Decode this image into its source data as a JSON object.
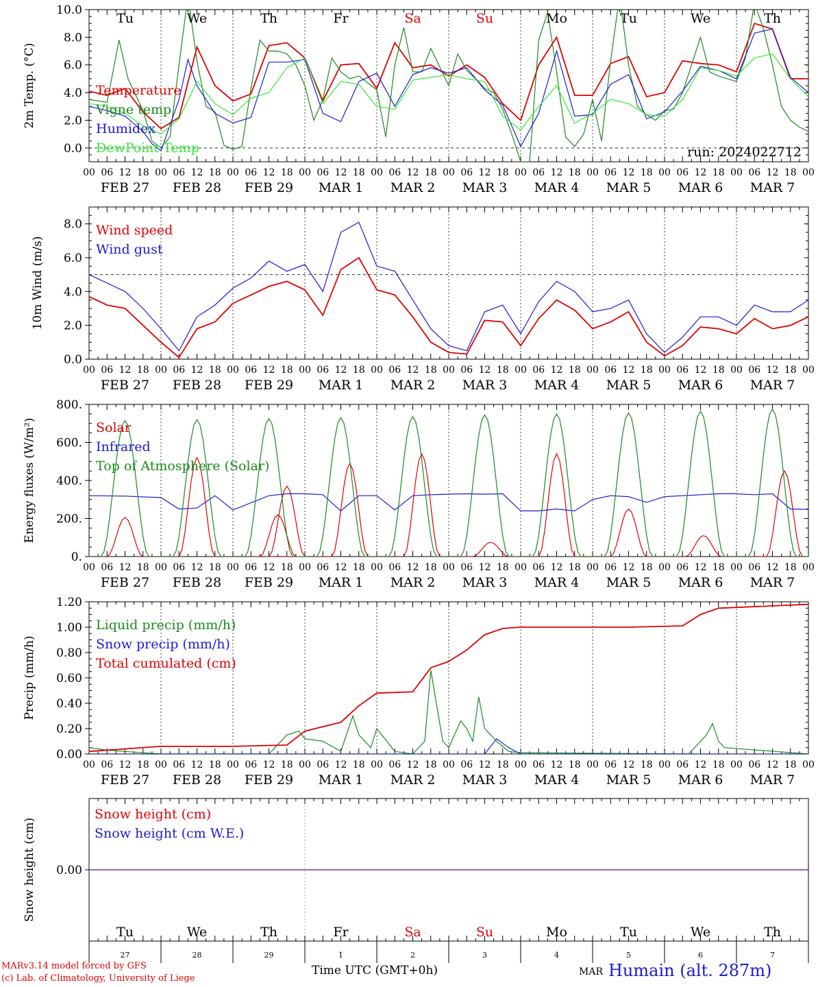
{
  "days": [
    "Tu",
    "We",
    "Th",
    "Fr",
    "Sa",
    "Su",
    "Mo",
    "Tu",
    "We",
    "Th"
  ],
  "weekend_days": [
    "Sa",
    "Su"
  ],
  "dates": [
    "FEB 27",
    "FEB 28",
    "FEB 29",
    "MAR  1",
    "MAR  2",
    "MAR  3",
    "MAR  4",
    "MAR  5",
    "MAR  6",
    "MAR  7"
  ],
  "day_numbers": [
    "27",
    "28",
    "29",
    "1",
    "2",
    "3",
    "4",
    "5",
    "6",
    "7"
  ],
  "hour_ticks": [
    "00",
    "06",
    "12",
    "18"
  ],
  "final_tick": "00",
  "run_label": "run: 2024022712",
  "footer": {
    "model": "MARv3.14 model forced by GFS",
    "credit": "(c) Lab. of Climatology, University of Liege",
    "xlabel": "Time UTC (GMT+0h)",
    "mar_tag": "MAR",
    "station": "Humain (alt. 287m)"
  },
  "colors": {
    "red": "#e00000",
    "green": "#1a8a1a",
    "blue": "#1a1ad8",
    "lightgreen": "#33e833",
    "darkblue": "#0000c0",
    "purple": "#7a2a9a"
  },
  "chart_data": [
    {
      "type": "line",
      "ylabel": "2m Temp. (°C)",
      "ylim": [
        -1.0,
        10.0
      ],
      "yticks": [
        "0.0",
        "2.0",
        "4.0",
        "6.0",
        "8.0",
        "10.0"
      ],
      "yticks_values": [
        0,
        2,
        4,
        6,
        8,
        10
      ],
      "dashed_ref": 0.0,
      "x_unit": "hours from FEB 27 00 UTC",
      "series": [
        {
          "name": "Temperature",
          "color": "#e00000",
          "x": [
            0,
            6,
            12,
            18,
            24,
            30,
            36,
            42,
            48,
            54,
            60,
            66,
            72,
            78,
            84,
            90,
            96,
            102,
            108,
            114,
            120,
            126,
            132,
            138,
            144,
            150,
            156,
            162,
            168,
            174,
            180,
            186,
            192,
            198,
            204,
            210,
            216,
            222,
            228,
            234,
            240
          ],
          "y": [
            4.1,
            3.8,
            4.3,
            2.6,
            1.4,
            2.2,
            7.3,
            4.5,
            3.4,
            3.9,
            7.4,
            7.6,
            6.5,
            3.4,
            6.0,
            6.1,
            4.3,
            7.6,
            5.8,
            6.0,
            5.2,
            6.0,
            5.1,
            3.2,
            2.0,
            6.0,
            8.0,
            3.8,
            3.8,
            6.1,
            6.6,
            3.7,
            4.0,
            6.3,
            6.1,
            6.0,
            5.5,
            9.0,
            8.6,
            5.0,
            5.0
          ]
        },
        {
          "name": "Vigne temp",
          "color": "#1a8a1a",
          "x": [
            0,
            6,
            10,
            13,
            18,
            21,
            24,
            27,
            30,
            33,
            36,
            39,
            42,
            45,
            48,
            51,
            54,
            57,
            60,
            63,
            66,
            69,
            72,
            75,
            78,
            81,
            84,
            87,
            90,
            96,
            99,
            102,
            105,
            108,
            111,
            114,
            120,
            123,
            126,
            129,
            132,
            135,
            138,
            141,
            144,
            147,
            150,
            153,
            156,
            159,
            162,
            165,
            168,
            171,
            174,
            177,
            180,
            183,
            186,
            189,
            192,
            195,
            198,
            201,
            204,
            207,
            210,
            213,
            216,
            219,
            222,
            225,
            228,
            231,
            234,
            237,
            240
          ],
          "y": [
            3.5,
            3.3,
            7.8,
            5.0,
            2.7,
            0.5,
            0.0,
            0.8,
            6.0,
            11.0,
            6.3,
            3.0,
            2.6,
            0.2,
            -0.1,
            0.1,
            4.3,
            7.8,
            7.0,
            7.0,
            6.8,
            6.0,
            4.5,
            2.0,
            3.5,
            6.5,
            5.5,
            5.0,
            5.2,
            4.2,
            0.8,
            6.0,
            8.7,
            5.5,
            5.5,
            7.2,
            4.5,
            6.8,
            5.6,
            5.0,
            4.3,
            4.0,
            2.8,
            1.0,
            -1.8,
            -2.5,
            7.8,
            9.8,
            5.5,
            0.8,
            0.1,
            1.0,
            3.5,
            0.5,
            6.3,
            11.0,
            6.0,
            3.0,
            2.4,
            2.0,
            2.7,
            2.8,
            4.0,
            6.0,
            8.0,
            5.5,
            5.2,
            5.0,
            4.8,
            6.5,
            10.5,
            8.6,
            6.0,
            3.0,
            2.0,
            1.5,
            1.2
          ]
        },
        {
          "name": "Humidex",
          "color": "#1a1ad8",
          "x": [
            0,
            6,
            12,
            18,
            21,
            24,
            30,
            33,
            36,
            42,
            48,
            54,
            60,
            66,
            72,
            78,
            84,
            90,
            96,
            102,
            108,
            114,
            120,
            126,
            132,
            138,
            144,
            150,
            156,
            162,
            168,
            174,
            180,
            186,
            192,
            198,
            204,
            210,
            216,
            222,
            228,
            234,
            240
          ],
          "y": [
            3.0,
            2.7,
            2.3,
            1.2,
            0.3,
            -0.2,
            3.5,
            6.4,
            4.5,
            2.5,
            1.8,
            2.2,
            6.2,
            6.2,
            6.4,
            2.5,
            1.9,
            4.8,
            5.4,
            3.0,
            5.3,
            5.8,
            5.4,
            5.8,
            4.2,
            3.1,
            0.1,
            2.5,
            7.0,
            2.3,
            2.4,
            4.6,
            5.3,
            2.1,
            2.6,
            4.1,
            5.9,
            5.6,
            5.0,
            8.3,
            8.6,
            5.1,
            4.0
          ]
        },
        {
          "name": "DewPoint Temp",
          "color": "#33e833",
          "x": [
            0,
            6,
            12,
            18,
            24,
            30,
            36,
            42,
            48,
            54,
            60,
            66,
            72,
            78,
            84,
            90,
            96,
            102,
            108,
            114,
            120,
            126,
            132,
            138,
            144,
            150,
            156,
            162,
            168,
            174,
            180,
            186,
            192,
            198,
            204,
            210,
            216,
            222,
            228,
            234,
            240
          ],
          "y": [
            3.2,
            3.0,
            2.5,
            1.6,
            1.0,
            2.1,
            4.8,
            3.2,
            2.4,
            3.6,
            4.0,
            5.8,
            6.5,
            3.2,
            4.8,
            4.6,
            3.0,
            2.8,
            4.9,
            5.1,
            5.3,
            5.0,
            4.8,
            2.3,
            1.3,
            3.0,
            4.5,
            1.8,
            2.5,
            3.5,
            3.2,
            2.4,
            2.3,
            3.5,
            5.8,
            5.6,
            5.2,
            6.5,
            6.8,
            5.0,
            3.7
          ]
        }
      ],
      "legend": [
        "Temperature",
        "Vigne temp",
        "Humidex",
        "DewPoint Temp"
      ]
    },
    {
      "type": "line",
      "ylabel": "10m Wind (m/s)",
      "ylim": [
        0.0,
        9.0
      ],
      "yticks": [
        "0.0",
        "2.0",
        "4.0",
        "6.0",
        "8.0"
      ],
      "yticks_values": [
        0,
        2,
        4,
        6,
        8
      ],
      "dashed_ref": 5.0,
      "x_unit": "hours from FEB 27 00 UTC",
      "series": [
        {
          "name": "Wind speed",
          "color": "#e00000",
          "x": [
            0,
            6,
            12,
            18,
            24,
            30,
            36,
            42,
            48,
            54,
            60,
            66,
            72,
            78,
            84,
            90,
            96,
            102,
            108,
            114,
            120,
            126,
            132,
            138,
            144,
            150,
            156,
            162,
            168,
            174,
            180,
            186,
            192,
            198,
            204,
            210,
            216,
            222,
            228,
            234,
            240
          ],
          "y": [
            3.7,
            3.2,
            3.0,
            2.0,
            1.0,
            0.1,
            1.8,
            2.2,
            3.3,
            3.8,
            4.3,
            4.6,
            4.1,
            2.6,
            5.3,
            6.0,
            4.1,
            3.8,
            2.5,
            1.0,
            0.4,
            0.3,
            2.3,
            2.2,
            0.8,
            2.4,
            3.5,
            2.9,
            1.8,
            2.2,
            2.8,
            1.0,
            0.2,
            0.8,
            1.9,
            1.8,
            1.5,
            2.4,
            1.8,
            2.0,
            2.5
          ]
        },
        {
          "name": "Wind gust",
          "color": "#1a1ad8",
          "x": [
            0,
            6,
            12,
            18,
            24,
            30,
            36,
            42,
            48,
            54,
            60,
            66,
            72,
            78,
            84,
            90,
            96,
            102,
            108,
            114,
            120,
            126,
            132,
            138,
            144,
            150,
            156,
            162,
            168,
            174,
            180,
            186,
            192,
            198,
            204,
            210,
            216,
            222,
            228,
            234,
            240
          ],
          "y": [
            5.0,
            4.5,
            4.0,
            3.0,
            1.8,
            0.5,
            2.5,
            3.2,
            4.2,
            4.8,
            5.8,
            5.2,
            5.6,
            4.0,
            7.5,
            8.1,
            5.5,
            5.2,
            3.5,
            1.8,
            0.8,
            0.5,
            2.8,
            3.2,
            1.5,
            3.4,
            4.6,
            4.0,
            2.8,
            3.0,
            3.5,
            1.5,
            0.4,
            1.3,
            2.5,
            2.5,
            2.0,
            3.2,
            2.8,
            2.8,
            3.5
          ]
        }
      ],
      "legend": [
        "Wind speed",
        "Wind gust"
      ]
    },
    {
      "type": "line",
      "ylabel": "Energy fluxes (W/m²)",
      "ylim": [
        0,
        800
      ],
      "yticks": [
        "0.",
        "200.",
        "400.",
        "600.",
        "800."
      ],
      "yticks_values": [
        0,
        200,
        400,
        600,
        800
      ],
      "x_unit": "hours from FEB 27 00 UTC",
      "series": [
        {
          "name": "Solar",
          "color": "#e00000",
          "peaks_x": [
            12,
            36,
            63,
            66,
            87,
            111,
            134,
            156,
            180,
            205,
            232
          ],
          "peaks_y": [
            205,
            520,
            220,
            370,
            490,
            540,
            75,
            540,
            250,
            110,
            450
          ]
        },
        {
          "name": "Infrared",
          "color": "#1a1ad8",
          "x": [
            0,
            12,
            24,
            30,
            36,
            42,
            48,
            60,
            66,
            72,
            78,
            84,
            90,
            96,
            102,
            108,
            114,
            120,
            126,
            132,
            138,
            144,
            150,
            156,
            162,
            168,
            174,
            180,
            186,
            192,
            198,
            204,
            210,
            216,
            222,
            228,
            234,
            240
          ],
          "y": [
            320,
            318,
            310,
            250,
            255,
            320,
            245,
            320,
            330,
            330,
            325,
            240,
            320,
            320,
            245,
            320,
            325,
            328,
            330,
            328,
            330,
            240,
            240,
            250,
            240,
            300,
            320,
            315,
            285,
            315,
            320,
            325,
            330,
            330,
            325,
            330,
            250,
            248
          ]
        },
        {
          "name": "Top of Atmosphere (Solar)",
          "color": "#1a8a1a",
          "peaks_x": [
            12,
            36,
            60,
            84,
            108,
            132,
            156,
            180,
            204,
            228
          ],
          "peaks_y": [
            715,
            720,
            725,
            730,
            735,
            745,
            750,
            755,
            765,
            775
          ]
        }
      ],
      "legend": [
        "Solar",
        "Infrared",
        "Top of Atmosphere (Solar)"
      ]
    },
    {
      "type": "line",
      "ylabel": "Precip (mm/h)",
      "ylim": [
        0.0,
        1.2
      ],
      "yticks": [
        "0.00",
        "0.20",
        "0.40",
        "0.60",
        "0.80",
        "1.00",
        "1.20"
      ],
      "yticks_values": [
        0,
        0.2,
        0.4,
        0.6,
        0.8,
        1.0,
        1.2
      ],
      "x_unit": "hours from FEB 27 00 UTC",
      "series": [
        {
          "name": "Liquid precip (mm/h)",
          "color": "#1a8a1a",
          "x": [
            0,
            6,
            12,
            18,
            24,
            60,
            66,
            70,
            72,
            78,
            84,
            88,
            90,
            94,
            96,
            102,
            108,
            112,
            114,
            118,
            120,
            124,
            126,
            128,
            130,
            132,
            136,
            140,
            144,
            200,
            204,
            206,
            208,
            210,
            212,
            240
          ],
          "y": [
            0.05,
            0.03,
            0.02,
            0.01,
            0,
            0,
            0.15,
            0.18,
            0.12,
            0.1,
            0.02,
            0.3,
            0.15,
            0.05,
            0.2,
            0.02,
            0.0,
            0.1,
            0.66,
            0.1,
            0.05,
            0.26,
            0.2,
            0.1,
            0.45,
            0.2,
            0.1,
            0.02,
            0.01,
            0.0,
            0.1,
            0.15,
            0.24,
            0.1,
            0.05,
            0.0
          ]
        },
        {
          "name": "Snow precip (mm/h)",
          "color": "#1a1ad8",
          "x": [
            0,
            132,
            136,
            140,
            144,
            240
          ],
          "y": [
            0,
            0,
            0.12,
            0.05,
            0,
            0
          ]
        },
        {
          "name": "Total cumulated (cm)",
          "color": "#e00000",
          "x": [
            0,
            12,
            24,
            48,
            66,
            72,
            84,
            90,
            96,
            108,
            114,
            120,
            126,
            132,
            138,
            144,
            180,
            198,
            204,
            210,
            240
          ],
          "y": [
            0.02,
            0.04,
            0.06,
            0.06,
            0.07,
            0.18,
            0.25,
            0.38,
            0.48,
            0.49,
            0.68,
            0.73,
            0.82,
            0.94,
            0.99,
            1.0,
            1.0,
            1.01,
            1.1,
            1.15,
            1.18
          ]
        }
      ],
      "legend": [
        "Liquid precip (mm/h)",
        "Snow precip (mm/h)",
        "Total cumulated (cm)"
      ]
    },
    {
      "type": "line",
      "ylabel": "Snow height (cm)",
      "ylim": [
        -1.0,
        1.0
      ],
      "yticks": [
        "0.00"
      ],
      "yticks_values": [
        0
      ],
      "x_unit": "hours from FEB 27 00 UTC",
      "series": [
        {
          "name": "Snow height (cm)",
          "color": "#e00000",
          "x": [
            0,
            240
          ],
          "y": [
            0,
            0
          ]
        },
        {
          "name": "Snow height (cm W.E.)",
          "color": "#1a1ad8",
          "x": [
            0,
            240
          ],
          "y": [
            0,
            0
          ]
        }
      ],
      "legend": [
        "Snow height (cm)",
        "Snow height (cm W.E.)"
      ]
    }
  ]
}
